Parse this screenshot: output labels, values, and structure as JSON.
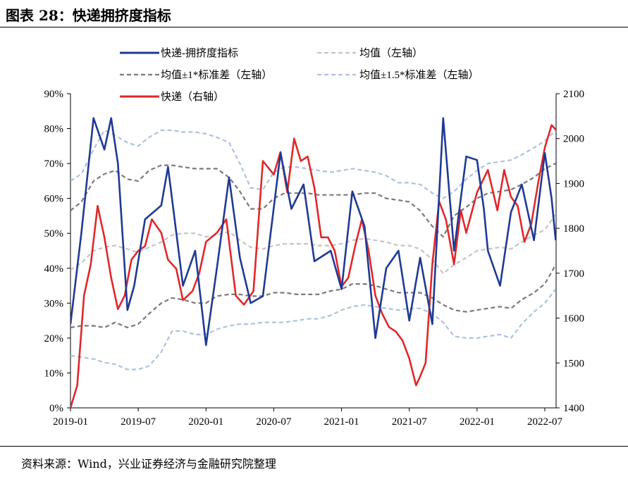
{
  "header": {
    "title": "图表 28：快递拥挤度指标"
  },
  "footer": {
    "source": "资料来源：Wind，兴业证券经济与金融研究院整理"
  },
  "chart_data": {
    "type": "line",
    "x_labels": [
      "2019-01",
      "2019-07",
      "2020-01",
      "2020-07",
      "2021-01",
      "2021-07",
      "2022-01",
      "2022-07"
    ],
    "y_left": {
      "min": 0,
      "max": 90,
      "ticks": [
        "0%",
        "10%",
        "20%",
        "30%",
        "40%",
        "50%",
        "60%",
        "70%",
        "80%",
        "90%"
      ]
    },
    "y_right": {
      "min": 1400,
      "max": 2100,
      "ticks": [
        "1400",
        "1500",
        "1600",
        "1700",
        "1800",
        "1900",
        "2000",
        "2100"
      ]
    },
    "legend": [
      "快递-拥挤度指标",
      "均值（左轴）",
      "均值±1*标准差（左轴）",
      "均值±1.5*标准差（左轴）",
      "快递（右轴）"
    ],
    "colors": {
      "crowding": "#1f3a93",
      "mean": "#c4c4c4",
      "std1": "#7a7a7a",
      "std15": "#aec1e0",
      "price": "#e0282a"
    },
    "series": [
      {
        "name": "快递-拥挤度指标",
        "axis": "left",
        "color": "#1f3a93",
        "x": [
          2019.0,
          2019.08,
          2019.17,
          2019.25,
          2019.3,
          2019.35,
          2019.42,
          2019.47,
          2019.55,
          2019.67,
          2019.72,
          2019.83,
          2019.92,
          2020.0,
          2020.08,
          2020.17,
          2020.25,
          2020.33,
          2020.42,
          2020.55,
          2020.63,
          2020.72,
          2020.8,
          2020.92,
          2021.0,
          2021.08,
          2021.17,
          2021.25,
          2021.33,
          2021.42,
          2021.5,
          2021.58,
          2021.67,
          2021.75,
          2021.83,
          2021.92,
          2022.0,
          2022.05,
          2022.08,
          2022.17,
          2022.25,
          2022.33,
          2022.42,
          2022.5,
          2022.55,
          2022.58
        ],
        "values": [
          24,
          50,
          83,
          74,
          83,
          70,
          28,
          35,
          54,
          58,
          69,
          35,
          45,
          18,
          40,
          66,
          43,
          30,
          32,
          73,
          57,
          64,
          42,
          45,
          34,
          62,
          52,
          20,
          40,
          45,
          25,
          43,
          24,
          83,
          45,
          72,
          71,
          57,
          45,
          35,
          56,
          64,
          48,
          73,
          60,
          48
        ]
      },
      {
        "name": "快递（右轴）",
        "axis": "right",
        "color": "#e0282a",
        "x": [
          2019.0,
          2019.05,
          2019.1,
          2019.15,
          2019.2,
          2019.25,
          2019.3,
          2019.35,
          2019.4,
          2019.45,
          2019.5,
          2019.55,
          2019.6,
          2019.67,
          2019.72,
          2019.78,
          2019.83,
          2019.9,
          2019.95,
          2020.0,
          2020.08,
          2020.15,
          2020.22,
          2020.28,
          2020.35,
          2020.42,
          2020.5,
          2020.55,
          2020.6,
          2020.65,
          2020.7,
          2020.75,
          2020.8,
          2020.85,
          2020.9,
          2020.95,
          2021.0,
          2021.05,
          2021.1,
          2021.15,
          2021.2,
          2021.25,
          2021.3,
          2021.35,
          2021.4,
          2021.45,
          2021.5,
          2021.55,
          2021.58,
          2021.62,
          2021.67,
          2021.72,
          2021.77,
          2021.83,
          2021.88,
          2021.92,
          2022.0,
          2022.08,
          2022.15,
          2022.2,
          2022.25,
          2022.3,
          2022.35,
          2022.4,
          2022.45,
          2022.5,
          2022.55,
          2022.58
        ],
        "values": [
          1400,
          1450,
          1650,
          1720,
          1850,
          1780,
          1690,
          1620,
          1650,
          1730,
          1750,
          1760,
          1820,
          1790,
          1730,
          1710,
          1640,
          1660,
          1700,
          1770,
          1790,
          1820,
          1650,
          1630,
          1660,
          1950,
          1920,
          1970,
          1880,
          2000,
          1950,
          1960,
          1890,
          1780,
          1780,
          1750,
          1670,
          1690,
          1760,
          1820,
          1750,
          1650,
          1610,
          1580,
          1570,
          1550,
          1510,
          1450,
          1470,
          1500,
          1720,
          1860,
          1820,
          1720,
          1840,
          1790,
          1880,
          1930,
          1840,
          1930,
          1870,
          1850,
          1770,
          1810,
          1900,
          1980,
          2030,
          2020
        ]
      },
      {
        "name": "均值（左轴）",
        "axis": "left",
        "color": "#c4c4c4",
        "x": [
          2019.0,
          2019.08,
          2019.17,
          2019.25,
          2019.33,
          2019.42,
          2019.5,
          2019.58,
          2019.67,
          2019.75,
          2019.83,
          2019.92,
          2020.0,
          2020.08,
          2020.17,
          2020.25,
          2020.33,
          2020.42,
          2020.5,
          2020.58,
          2020.67,
          2020.75,
          2020.83,
          2020.92,
          2021.0,
          2021.08,
          2021.17,
          2021.25,
          2021.33,
          2021.42,
          2021.5,
          2021.58,
          2021.67,
          2021.75,
          2021.83,
          2021.92,
          2022.0,
          2022.08,
          2022.17,
          2022.25,
          2022.33,
          2022.42,
          2022.5,
          2022.58
        ],
        "values": [
          39.5,
          41.5,
          45,
          46,
          46.5,
          45.5,
          44.5,
          46,
          47.5,
          49.5,
          50,
          50,
          49,
          49.5,
          50.5,
          48,
          46,
          45.5,
          46.5,
          47,
          47,
          47,
          46.5,
          46.5,
          47,
          48,
          48.5,
          48,
          47.5,
          46.5,
          46.5,
          45.5,
          42.5,
          38.5,
          41,
          43,
          45,
          45.5,
          46,
          45.5,
          47.5,
          49.5,
          51,
          55.5
        ]
      },
      {
        "name": "均值±1*标准差（左轴）",
        "axis": "left",
        "color": "#7a7a7a",
        "x": [
          2019.0,
          2019.08,
          2019.17,
          2019.25,
          2019.33,
          2019.42,
          2019.5,
          2019.58,
          2019.67,
          2019.75,
          2019.83,
          2019.92,
          2020.0,
          2020.08,
          2020.17,
          2020.25,
          2020.33,
          2020.42,
          2020.5,
          2020.58,
          2020.67,
          2020.75,
          2020.83,
          2020.92,
          2021.0,
          2021.08,
          2021.17,
          2021.25,
          2021.33,
          2021.42,
          2021.5,
          2021.58,
          2021.67,
          2021.75,
          2021.83,
          2021.92,
          2022.0,
          2022.08,
          2022.17,
          2022.25,
          2022.33,
          2022.42,
          2022.5,
          2022.58
        ],
        "values": [
          56.5,
          59,
          65,
          67,
          68,
          65.5,
          65,
          68,
          69.5,
          69.5,
          69,
          68.5,
          68.5,
          68.5,
          66,
          62,
          57,
          57,
          60,
          61.5,
          61.5,
          61.5,
          61,
          61,
          61,
          61,
          61.5,
          61.5,
          60,
          59.5,
          59,
          56.5,
          52,
          49,
          55,
          57.5,
          60,
          61.5,
          62,
          62.5,
          64,
          66,
          68.5,
          70
        ]
      },
      {
        "name": "均值±1*标准差（左轴）",
        "axis": "left",
        "color": "#7a7a7a",
        "x": [
          2019.0,
          2019.08,
          2019.17,
          2019.25,
          2019.33,
          2019.42,
          2019.5,
          2019.58,
          2019.67,
          2019.75,
          2019.83,
          2019.92,
          2020.0,
          2020.08,
          2020.17,
          2020.25,
          2020.33,
          2020.42,
          2020.5,
          2020.58,
          2020.67,
          2020.75,
          2020.83,
          2020.92,
          2021.0,
          2021.08,
          2021.17,
          2021.25,
          2021.33,
          2021.42,
          2021.5,
          2021.58,
          2021.67,
          2021.75,
          2021.83,
          2021.92,
          2022.0,
          2022.08,
          2022.17,
          2022.25,
          2022.33,
          2022.42,
          2022.5,
          2022.58
        ],
        "values": [
          23,
          23.5,
          23.5,
          23,
          24.5,
          23,
          24,
          27,
          30,
          31.5,
          31,
          30,
          30,
          32,
          32.5,
          32.5,
          32,
          32,
          33,
          33,
          32.5,
          32.5,
          32.5,
          33.5,
          34,
          35.5,
          35.5,
          35,
          34,
          33,
          33,
          33,
          31.5,
          29.5,
          28,
          27.5,
          28,
          28.5,
          29,
          28.5,
          31,
          33,
          35.5,
          41
        ]
      },
      {
        "name": "均值±1.5*标准差（左轴）",
        "axis": "left",
        "color": "#aec1e0",
        "x": [
          2019.0,
          2019.08,
          2019.17,
          2019.25,
          2019.33,
          2019.42,
          2019.5,
          2019.58,
          2019.67,
          2019.75,
          2019.83,
          2019.92,
          2020.0,
          2020.08,
          2020.17,
          2020.25,
          2020.33,
          2020.42,
          2020.5,
          2020.58,
          2020.67,
          2020.75,
          2020.83,
          2020.92,
          2021.0,
          2021.08,
          2021.17,
          2021.25,
          2021.33,
          2021.42,
          2021.5,
          2021.58,
          2021.67,
          2021.75,
          2021.83,
          2021.92,
          2022.0,
          2022.08,
          2022.17,
          2022.25,
          2022.33,
          2022.42,
          2022.5,
          2022.58
        ],
        "values": [
          65,
          67,
          74,
          79.5,
          78,
          76,
          75,
          77.5,
          79.5,
          79.5,
          79,
          79,
          78.5,
          77.5,
          76,
          70,
          63,
          62.5,
          67.5,
          69,
          69,
          68.5,
          68,
          67.5,
          68,
          68.5,
          68,
          67.5,
          66.5,
          64.5,
          64.5,
          64,
          61.5,
          60,
          62,
          65.5,
          68,
          70,
          70.5,
          71,
          72.5,
          74.5,
          76.5,
          79.5
        ]
      },
      {
        "name": "均值±1.5*标准差（左轴）",
        "axis": "left",
        "color": "#aec1e0",
        "x": [
          2019.0,
          2019.08,
          2019.17,
          2019.25,
          2019.33,
          2019.42,
          2019.5,
          2019.58,
          2019.67,
          2019.75,
          2019.83,
          2019.92,
          2020.0,
          2020.08,
          2020.17,
          2020.25,
          2020.33,
          2020.42,
          2020.5,
          2020.58,
          2020.67,
          2020.75,
          2020.83,
          2020.92,
          2021.0,
          2021.08,
          2021.17,
          2021.25,
          2021.33,
          2021.42,
          2021.5,
          2021.58,
          2021.67,
          2021.75,
          2021.83,
          2021.92,
          2022.0,
          2022.08,
          2022.17,
          2022.25,
          2022.33,
          2022.42,
          2022.5,
          2022.58
        ],
        "values": [
          15,
          14.5,
          14,
          13,
          12.5,
          11,
          11,
          12,
          16,
          22,
          22,
          21,
          21,
          22.5,
          23.5,
          24,
          24,
          24.5,
          24.5,
          24.5,
          25,
          25.5,
          25.5,
          26.5,
          28,
          29,
          29.5,
          29,
          28.5,
          28,
          28.5,
          28.5,
          27,
          24.5,
          20.5,
          20,
          20,
          20.5,
          21,
          20,
          24,
          27.5,
          30,
          34
        ]
      }
    ]
  }
}
